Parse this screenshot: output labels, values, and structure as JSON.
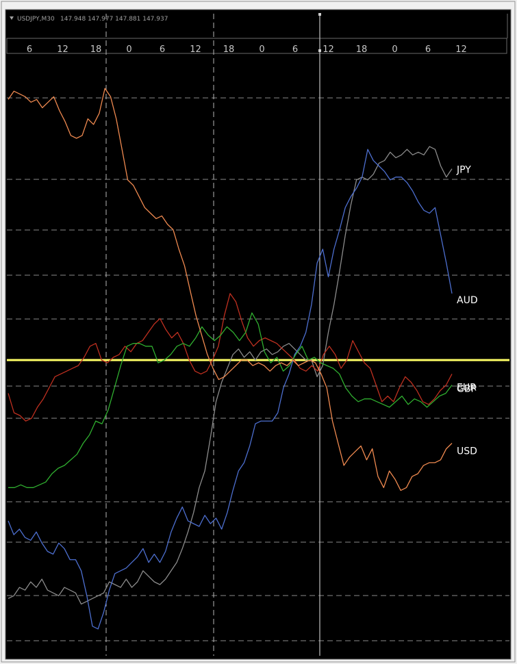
{
  "window": {
    "symbol_info": "USDJPY,M30",
    "ohlc": "147.948 147.977 147.881 147.937"
  },
  "chart_data": {
    "type": "line",
    "x_tick_labels": [
      "6",
      "12",
      "18",
      "0",
      "6",
      "12",
      "18",
      "0",
      "6",
      "12",
      "18",
      "0",
      "6",
      "12"
    ],
    "y_range": [
      -1,
      1
    ],
    "zero_line": 0,
    "grid": true,
    "colors": {
      "background": "#000000",
      "grid": "#8a8a8a",
      "zero_line": "#ffff66",
      "label": "#ffffff"
    },
    "series": [
      {
        "name": "JPY",
        "color": "#8c8c8c",
        "values": [
          -0.86,
          -0.85,
          -0.82,
          -0.83,
          -0.8,
          -0.82,
          -0.79,
          -0.83,
          -0.84,
          -0.85,
          -0.82,
          -0.83,
          -0.84,
          -0.88,
          -0.87,
          -0.86,
          -0.85,
          -0.84,
          -0.8,
          -0.81,
          -0.82,
          -0.79,
          -0.82,
          -0.8,
          -0.76,
          -0.78,
          -0.8,
          -0.81,
          -0.79,
          -0.76,
          -0.73,
          -0.68,
          -0.62,
          -0.55,
          -0.46,
          -0.4,
          -0.28,
          -0.15,
          -0.08,
          -0.03,
          0.02,
          0.04,
          0.01,
          0.03,
          0.0,
          0.03,
          0.04,
          0.02,
          0.03,
          0.05,
          0.06,
          0.04,
          0.02,
          0.0,
          0.0,
          -0.06,
          -0.02,
          0.1,
          0.2,
          0.32,
          0.45,
          0.56,
          0.65,
          0.66,
          0.65,
          0.67,
          0.71,
          0.72,
          0.75,
          0.73,
          0.74,
          0.76,
          0.74,
          0.75,
          0.74,
          0.77,
          0.76,
          0.7,
          0.66,
          0.69
        ]
      },
      {
        "name": "AUD",
        "color": "#4d6fd0",
        "values": [
          -0.58,
          -0.63,
          -0.61,
          -0.64,
          -0.65,
          -0.62,
          -0.66,
          -0.69,
          -0.7,
          -0.66,
          -0.68,
          -0.72,
          -0.72,
          -0.76,
          -0.85,
          -0.96,
          -0.97,
          -0.91,
          -0.83,
          -0.77,
          -0.76,
          -0.75,
          -0.73,
          -0.71,
          -0.68,
          -0.73,
          -0.7,
          -0.73,
          -0.69,
          -0.62,
          -0.57,
          -0.53,
          -0.58,
          -0.59,
          -0.6,
          -0.56,
          -0.59,
          -0.57,
          -0.61,
          -0.55,
          -0.47,
          -0.4,
          -0.37,
          -0.31,
          -0.23,
          -0.22,
          -0.22,
          -0.22,
          -0.19,
          -0.1,
          -0.05,
          0.02,
          0.05,
          0.1,
          0.2,
          0.35,
          0.4,
          0.3,
          0.4,
          0.47,
          0.55,
          0.59,
          0.62,
          0.66,
          0.76,
          0.72,
          0.7,
          0.68,
          0.65,
          0.66,
          0.66,
          0.64,
          0.61,
          0.57,
          0.54,
          0.53,
          0.55,
          0.45,
          0.35,
          0.24
        ]
      },
      {
        "name": "EUR",
        "color": "#c03020",
        "values": [
          -0.12,
          -0.19,
          -0.2,
          -0.22,
          -0.21,
          -0.17,
          -0.14,
          -0.1,
          -0.06,
          -0.05,
          -0.04,
          -0.03,
          -0.02,
          0.01,
          0.05,
          0.06,
          0.0,
          -0.01,
          0.01,
          0.02,
          0.05,
          0.03,
          0.06,
          0.07,
          0.1,
          0.13,
          0.15,
          0.11,
          0.08,
          0.1,
          0.06,
          0.0,
          -0.04,
          -0.05,
          -0.04,
          0.0,
          0.05,
          0.16,
          0.24,
          0.21,
          0.14,
          0.08,
          0.05,
          0.07,
          0.08,
          0.07,
          0.06,
          0.04,
          0.02,
          0.0,
          -0.03,
          -0.04,
          -0.02,
          -0.04,
          0.02,
          0.05,
          0.02,
          -0.03,
          0.0,
          0.07,
          0.03,
          -0.01,
          -0.03,
          -0.09,
          -0.15,
          -0.13,
          -0.15,
          -0.1,
          -0.06,
          -0.08,
          -0.11,
          -0.15,
          -0.16,
          -0.14,
          -0.11,
          -0.09,
          -0.05
        ]
      },
      {
        "name": "GBP",
        "color": "#30b030",
        "values": [
          -0.46,
          -0.46,
          -0.45,
          -0.46,
          -0.46,
          -0.45,
          -0.44,
          -0.41,
          -0.39,
          -0.38,
          -0.36,
          -0.34,
          -0.3,
          -0.27,
          -0.22,
          -0.23,
          -0.18,
          -0.1,
          -0.02,
          0.05,
          0.06,
          0.06,
          0.05,
          0.05,
          -0.01,
          0.0,
          0.02,
          0.05,
          0.06,
          0.05,
          0.08,
          0.12,
          0.09,
          0.07,
          0.09,
          0.12,
          0.1,
          0.07,
          0.1,
          0.17,
          0.13,
          0.03,
          -0.01,
          0.01,
          -0.04,
          -0.02,
          0.02,
          0.05,
          0.0,
          0.01,
          -0.01,
          -0.02,
          -0.03,
          -0.05,
          -0.1,
          -0.13,
          -0.15,
          -0.14,
          -0.14,
          -0.15,
          -0.16,
          -0.17,
          -0.15,
          -0.13,
          -0.16,
          -0.14,
          -0.15,
          -0.17,
          -0.15,
          -0.13,
          -0.12,
          -0.09
        ]
      },
      {
        "name": "USD",
        "color": "#f08a50",
        "values": [
          0.94,
          0.97,
          0.96,
          0.95,
          0.93,
          0.94,
          0.91,
          0.93,
          0.95,
          0.9,
          0.86,
          0.81,
          0.8,
          0.81,
          0.87,
          0.85,
          0.89,
          0.98,
          0.95,
          0.87,
          0.76,
          0.65,
          0.63,
          0.59,
          0.55,
          0.53,
          0.51,
          0.52,
          0.49,
          0.47,
          0.4,
          0.34,
          0.25,
          0.16,
          0.09,
          0.02,
          -0.03,
          -0.07,
          -0.06,
          -0.04,
          -0.02,
          0.0,
          0.0,
          -0.02,
          -0.01,
          -0.02,
          -0.04,
          -0.02,
          -0.01,
          -0.02,
          0.0,
          -0.02,
          -0.01,
          0.0,
          -0.01,
          -0.05,
          -0.1,
          -0.22,
          -0.3,
          -0.38,
          -0.35,
          -0.33,
          -0.31,
          -0.36,
          -0.32,
          -0.42,
          -0.46,
          -0.4,
          -0.43,
          -0.47,
          -0.46,
          -0.42,
          -0.41,
          -0.38,
          -0.37,
          -0.37,
          -0.36,
          -0.32,
          -0.3
        ]
      }
    ]
  }
}
